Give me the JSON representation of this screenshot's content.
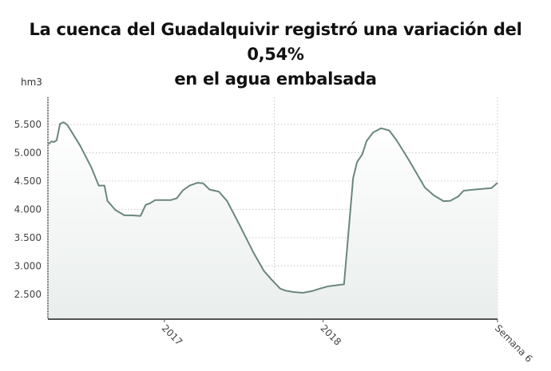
{
  "chart_data": {
    "type": "area",
    "title": "La cuenca del Guadalquivir registró una variación del 0,54% en el agua embalsada",
    "title_lines": [
      "La cuenca del Guadalquivir registró una variación del 0,54%",
      "en el agua embalsada"
    ],
    "ylabel": "hm3",
    "xlabel": "",
    "ylim": [
      2060,
      5980
    ],
    "xlim": [
      "2016-04-08",
      "2019-02-06"
    ],
    "yticks": [
      2500,
      3000,
      3500,
      4000,
      4500,
      5000,
      5500
    ],
    "ytick_labels": [
      "2.500",
      "3.000",
      "3.500",
      "4.000",
      "4.500",
      "5.000",
      "5.500"
    ],
    "xticks": [
      {
        "x": "2017-01-01",
        "label": "2017"
      },
      {
        "x": "2018-01-01",
        "label": "2018"
      },
      {
        "x": "2019-02-06",
        "label": "Semana 6"
      }
    ],
    "grid": {
      "horizontal": true,
      "vertical": true,
      "style": "dotted"
    },
    "colors": {
      "line": "#6a877b",
      "fill_top": "#ffffff",
      "fill_bottom": "#e9eeec",
      "grid": "#c8c8c8",
      "axis": "#555555"
    },
    "series": [
      {
        "x": [
          "2016-04-09",
          "2016-04-16",
          "2016-04-22",
          "2016-04-28",
          "2016-05-06",
          "2016-05-14",
          "2016-05-23",
          "2016-06-22",
          "2016-07-17",
          "2016-08-03",
          "2016-08-16",
          "2016-08-23",
          "2016-09-10",
          "2016-10-01",
          "2016-10-17",
          "2016-11-07",
          "2016-11-19",
          "2016-11-28",
          "2016-12-11",
          "2017-01-16",
          "2017-01-29",
          "2017-02-13",
          "2017-02-28",
          "2017-03-18",
          "2017-03-31",
          "2017-04-15",
          "2017-05-06",
          "2017-05-25",
          "2017-06-24",
          "2017-07-25",
          "2017-08-18",
          "2017-09-06",
          "2017-09-24",
          "2017-10-06",
          "2017-10-25",
          "2017-11-15",
          "2017-12-06",
          "2017-12-25",
          "2018-01-12",
          "2018-02-18",
          "2018-03-11",
          "2018-03-20",
          "2018-04-01",
          "2018-04-11",
          "2018-04-26",
          "2018-05-14",
          "2018-06-02",
          "2018-06-20",
          "2018-07-20",
          "2018-08-23",
          "2018-09-13",
          "2018-10-05",
          "2018-10-20",
          "2018-11-08",
          "2018-11-20",
          "2018-12-14",
          "2019-01-23",
          "2019-02-06"
        ],
        "y": [
          5150,
          5200,
          5190,
          5220,
          5510,
          5540,
          5490,
          5115,
          4740,
          4420,
          4420,
          4150,
          3990,
          3895,
          3895,
          3885,
          4080,
          4105,
          4165,
          4165,
          4195,
          4340,
          4420,
          4470,
          4460,
          4350,
          4315,
          4150,
          3705,
          3235,
          2910,
          2745,
          2600,
          2565,
          2540,
          2525,
          2555,
          2600,
          2640,
          2675,
          4550,
          4835,
          4975,
          5210,
          5360,
          5435,
          5395,
          5210,
          4835,
          4385,
          4245,
          4145,
          4150,
          4230,
          4330,
          4350,
          4375,
          4470
        ]
      }
    ]
  }
}
